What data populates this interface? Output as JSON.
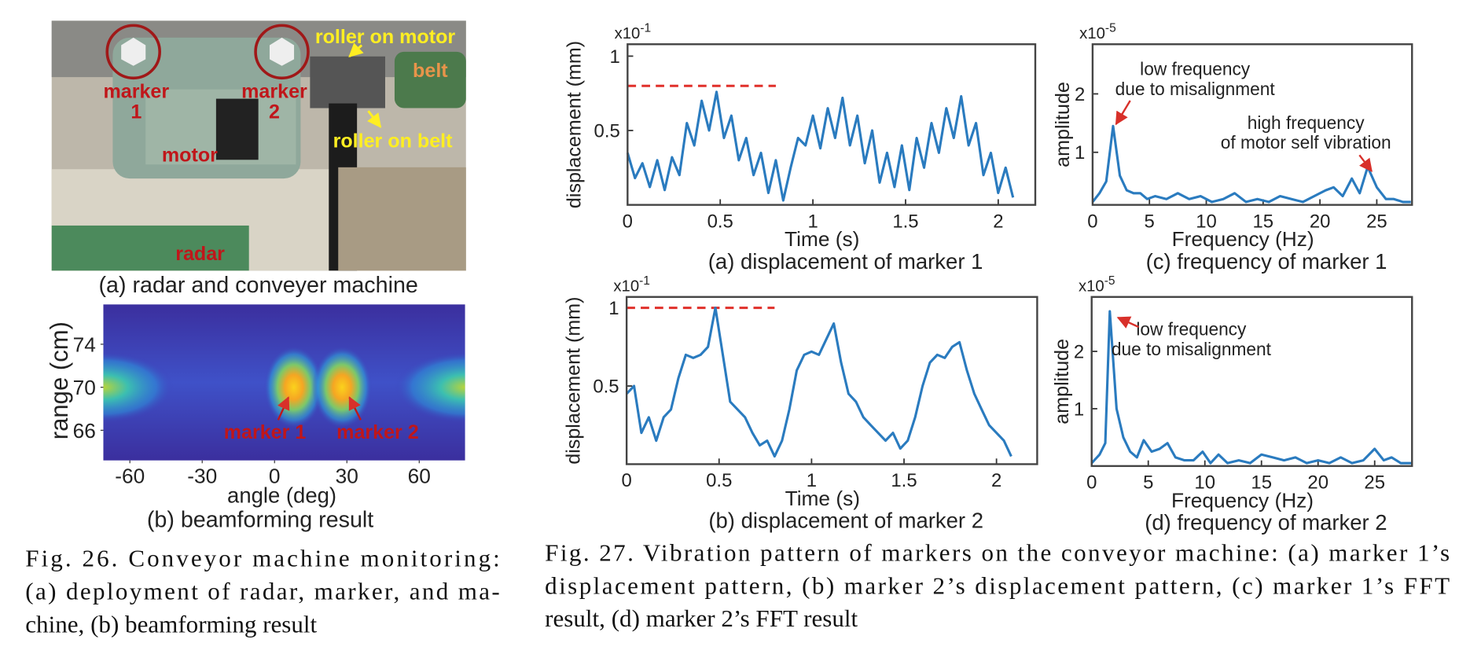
{
  "photo": {
    "title": "(a) radar and conveyer machine",
    "labels": [
      "marker",
      "1",
      "marker",
      "2",
      "roller on motor",
      "belt",
      "roller on belt",
      "motor",
      "radar"
    ]
  },
  "chart_data": [
    {
      "type": "heatmap",
      "title": "(b) beamforming result",
      "x_label": "angle (deg)",
      "y_label": "range (cm)",
      "xlim": [
        -71,
        79
      ],
      "ylim": [
        63.2,
        77.7
      ],
      "xticks": [
        -60,
        -30,
        0,
        30,
        60
      ],
      "yticks": [
        66,
        70,
        74
      ],
      "spots": [
        {
          "angle": 8,
          "range": 70,
          "intensity": 1
        },
        {
          "angle": 28,
          "range": 70,
          "intensity": 1
        },
        {
          "angle": -71,
          "range": 70,
          "intensity": 0.5
        },
        {
          "angle": 79,
          "range": 70,
          "intensity": 0.5
        }
      ],
      "annotations": [
        "marker 1",
        "marker 2"
      ]
    },
    {
      "type": "line",
      "title": "(a) displacement of marker 1",
      "x_label": "Time (s)",
      "y_label": "displacement (mm)",
      "y_multiplier": {
        "base": "x10",
        "exponent": "-1"
      },
      "xlim": [
        0,
        2.2
      ],
      "ylim": [
        0,
        1.08
      ],
      "xticks": [
        0,
        0.5,
        1,
        1.5,
        2
      ],
      "yticks": [
        0.5,
        1
      ],
      "color": "#2a7bbf",
      "reference_line": {
        "y": 0.8,
        "x": [
          0,
          0.8
        ],
        "color": "#e0302a"
      },
      "x": [
        0,
        0.04,
        0.08,
        0.12,
        0.16,
        0.2,
        0.24,
        0.28,
        0.32,
        0.36,
        0.4,
        0.44,
        0.48,
        0.52,
        0.56,
        0.6,
        0.64,
        0.68,
        0.72,
        0.76,
        0.8,
        0.84,
        0.88,
        0.92,
        0.96,
        1,
        1.04,
        1.08,
        1.12,
        1.16,
        1.2,
        1.24,
        1.28,
        1.32,
        1.36,
        1.4,
        1.44,
        1.48,
        1.52,
        1.56,
        1.6,
        1.64,
        1.68,
        1.72,
        1.76,
        1.8,
        1.84,
        1.88,
        1.92,
        1.96,
        2,
        2.04,
        2.08
      ],
      "values": [
        0.35,
        0.18,
        0.28,
        0.12,
        0.3,
        0.1,
        0.32,
        0.2,
        0.55,
        0.4,
        0.7,
        0.5,
        0.76,
        0.45,
        0.6,
        0.3,
        0.45,
        0.2,
        0.35,
        0.08,
        0.3,
        0.03,
        0.25,
        0.45,
        0.4,
        0.6,
        0.38,
        0.65,
        0.45,
        0.72,
        0.4,
        0.6,
        0.28,
        0.5,
        0.15,
        0.35,
        0.12,
        0.4,
        0.1,
        0.45,
        0.25,
        0.55,
        0.35,
        0.65,
        0.45,
        0.73,
        0.4,
        0.55,
        0.2,
        0.35,
        0.08,
        0.25,
        0.05
      ],
      "annotations": []
    },
    {
      "type": "line",
      "title": "(b) displacement of marker 2",
      "x_label": "Time (s)",
      "y_label": "displacement (mm)",
      "y_multiplier": {
        "base": "x10",
        "exponent": "-1"
      },
      "xlim": [
        0,
        2.22
      ],
      "ylim": [
        0,
        1.07
      ],
      "xticks": [
        0,
        0.5,
        1,
        1.5,
        2
      ],
      "yticks": [
        0.5,
        1
      ],
      "color": "#2a7bbf",
      "reference_line": {
        "y": 1,
        "x": [
          0,
          0.8
        ],
        "color": "#e0302a"
      },
      "x": [
        0,
        0.04,
        0.08,
        0.12,
        0.16,
        0.2,
        0.24,
        0.28,
        0.32,
        0.36,
        0.4,
        0.44,
        0.48,
        0.52,
        0.56,
        0.6,
        0.64,
        0.68,
        0.72,
        0.76,
        0.8,
        0.84,
        0.88,
        0.92,
        0.96,
        1,
        1.04,
        1.08,
        1.12,
        1.16,
        1.2,
        1.24,
        1.28,
        1.32,
        1.36,
        1.4,
        1.44,
        1.48,
        1.52,
        1.56,
        1.6,
        1.64,
        1.68,
        1.72,
        1.76,
        1.8,
        1.84,
        1.88,
        1.92,
        1.96,
        2,
        2.04,
        2.08
      ],
      "values": [
        0.45,
        0.5,
        0.2,
        0.3,
        0.15,
        0.3,
        0.35,
        0.55,
        0.7,
        0.68,
        0.7,
        0.75,
        1,
        0.7,
        0.4,
        0.35,
        0.3,
        0.2,
        0.12,
        0.15,
        0.05,
        0.15,
        0.35,
        0.6,
        0.7,
        0.72,
        0.7,
        0.8,
        0.9,
        0.65,
        0.45,
        0.4,
        0.3,
        0.25,
        0.2,
        0.15,
        0.2,
        0.1,
        0.15,
        0.3,
        0.5,
        0.65,
        0.7,
        0.68,
        0.75,
        0.78,
        0.6,
        0.45,
        0.35,
        0.25,
        0.2,
        0.15,
        0.05
      ],
      "annotations": []
    },
    {
      "type": "line",
      "title": "(c) frequency of marker 1",
      "x_label": "Frequency (Hz)",
      "y_label": "amplitude",
      "y_multiplier": {
        "base": "x10",
        "exponent": "-5"
      },
      "xlim": [
        0,
        28.1
      ],
      "ylim": [
        0.1,
        2.85
      ],
      "xticks": [
        0,
        5,
        10,
        15,
        20,
        25
      ],
      "yticks": [
        1,
        2
      ],
      "color": "#2a7bbf",
      "x": [
        0,
        0.6,
        1.2,
        1.8,
        2.4,
        3,
        3.6,
        4.2,
        4.8,
        5.5,
        6.5,
        7.5,
        8.5,
        9.5,
        10.5,
        11.5,
        12.5,
        13.5,
        14.5,
        15.5,
        16.5,
        17.5,
        18.5,
        19.5,
        20.5,
        21.2,
        22,
        22.8,
        23.5,
        24.2,
        25,
        25.8,
        26.5,
        27.3,
        28
      ],
      "values": [
        0.15,
        0.3,
        0.5,
        1.45,
        0.6,
        0.35,
        0.3,
        0.3,
        0.2,
        0.25,
        0.2,
        0.3,
        0.2,
        0.25,
        0.15,
        0.2,
        0.3,
        0.15,
        0.2,
        0.15,
        0.25,
        0.2,
        0.15,
        0.25,
        0.35,
        0.4,
        0.25,
        0.55,
        0.3,
        0.75,
        0.4,
        0.2,
        0.2,
        0.15,
        0.15
      ],
      "annotations": [
        {
          "lines": [
            "low frequency",
            "due to misalignment"
          ]
        },
        {
          "lines": [
            "high frequency",
            "of motor self vibration"
          ]
        }
      ]
    },
    {
      "type": "line",
      "title": "(d) frequency of marker 2",
      "x_label": "Frequency (Hz)",
      "y_label": "amplitude",
      "y_multiplier": {
        "base": "x10",
        "exponent": "-5"
      },
      "xlim": [
        0,
        28.3
      ],
      "ylim": [
        0,
        2.95
      ],
      "xticks": [
        0,
        5,
        10,
        15,
        20,
        25
      ],
      "yticks": [
        1,
        2
      ],
      "color": "#2a7bbf",
      "x": [
        0,
        0.7,
        1.2,
        1.6,
        2.2,
        2.8,
        3.4,
        4,
        4.6,
        5.3,
        6,
        6.7,
        7.4,
        8.2,
        9,
        9.8,
        10.5,
        11.2,
        12,
        13,
        14,
        15,
        16,
        17,
        18,
        19,
        20,
        21,
        22,
        23,
        24,
        25,
        25.8,
        26.5,
        27.3,
        28.3
      ],
      "values": [
        0.05,
        0.2,
        0.4,
        2.7,
        1,
        0.5,
        0.25,
        0.15,
        0.45,
        0.25,
        0.3,
        0.4,
        0.15,
        0.1,
        0.1,
        0.25,
        0.05,
        0.2,
        0.05,
        0.1,
        0.05,
        0.2,
        0.15,
        0.1,
        0.15,
        0.05,
        0.1,
        0.05,
        0.15,
        0.05,
        0.1,
        0.3,
        0.1,
        0.15,
        0.05,
        0.05
      ],
      "annotations": [
        {
          "lines": [
            "low frequency",
            "due to misalignment"
          ]
        }
      ]
    }
  ],
  "captions": [
    {
      "lines": [
        "Fig. 26.  Conveyor machine monitoring:",
        "(a) deployment of radar, marker, and ma-",
        "chine, (b) beamforming result"
      ]
    },
    {
      "lines": [
        "Fig. 27.  Vibration pattern of markers on the conveyor machine: (a) marker 1’s",
        "displacement pattern, (b) marker 2’s displacement pattern, (c) marker 1’s FFT",
        "result, (d) marker 2’s FFT result"
      ]
    }
  ]
}
